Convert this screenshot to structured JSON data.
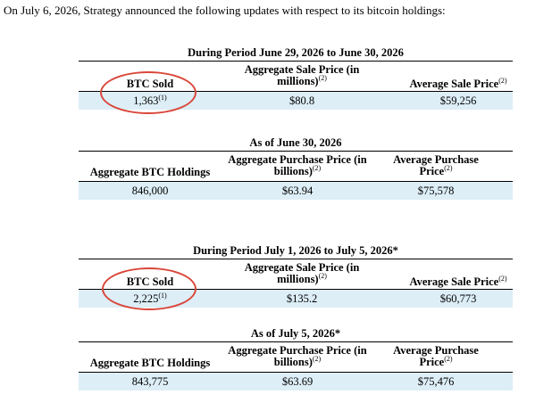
{
  "intro": "On July 6, 2026, Strategy announced the following updates with respect to its bitcoin holdings:",
  "footnote_mark": "(1)",
  "footnote_mark_2": "(2)",
  "tables": [
    {
      "title": "During Period June 29, 2026 to June 30, 2026",
      "headers": [
        "BTC Sold",
        "Aggregate Sale Price (in millions)",
        "Average Sale Price"
      ],
      "values": [
        "1,363",
        "$80.8",
        "$59,256"
      ]
    },
    {
      "title": "As of June 30, 2026",
      "headers": [
        "Aggregate BTC Holdings",
        "Aggregate Purchase Price (in billions)",
        "Average Purchase Price"
      ],
      "values": [
        "846,000",
        "$63.94",
        "$75,578"
      ]
    },
    {
      "title": "During Period July 1, 2026 to July 5, 2026*",
      "headers": [
        "BTC Sold",
        "Aggregate Sale Price (in millions)",
        "Average Sale Price"
      ],
      "values": [
        "2,225",
        "$135.2",
        "$60,773"
      ]
    },
    {
      "title": "As of July 5, 2026*",
      "headers": [
        "Aggregate BTC Holdings",
        "Aggregate Purchase Price (in billions)",
        "Average Purchase Price"
      ],
      "values": [
        "843,775",
        "$63.69",
        "$75,476"
      ]
    }
  ],
  "highlight_color": "#d9473a",
  "row_color": "#ddeef7"
}
